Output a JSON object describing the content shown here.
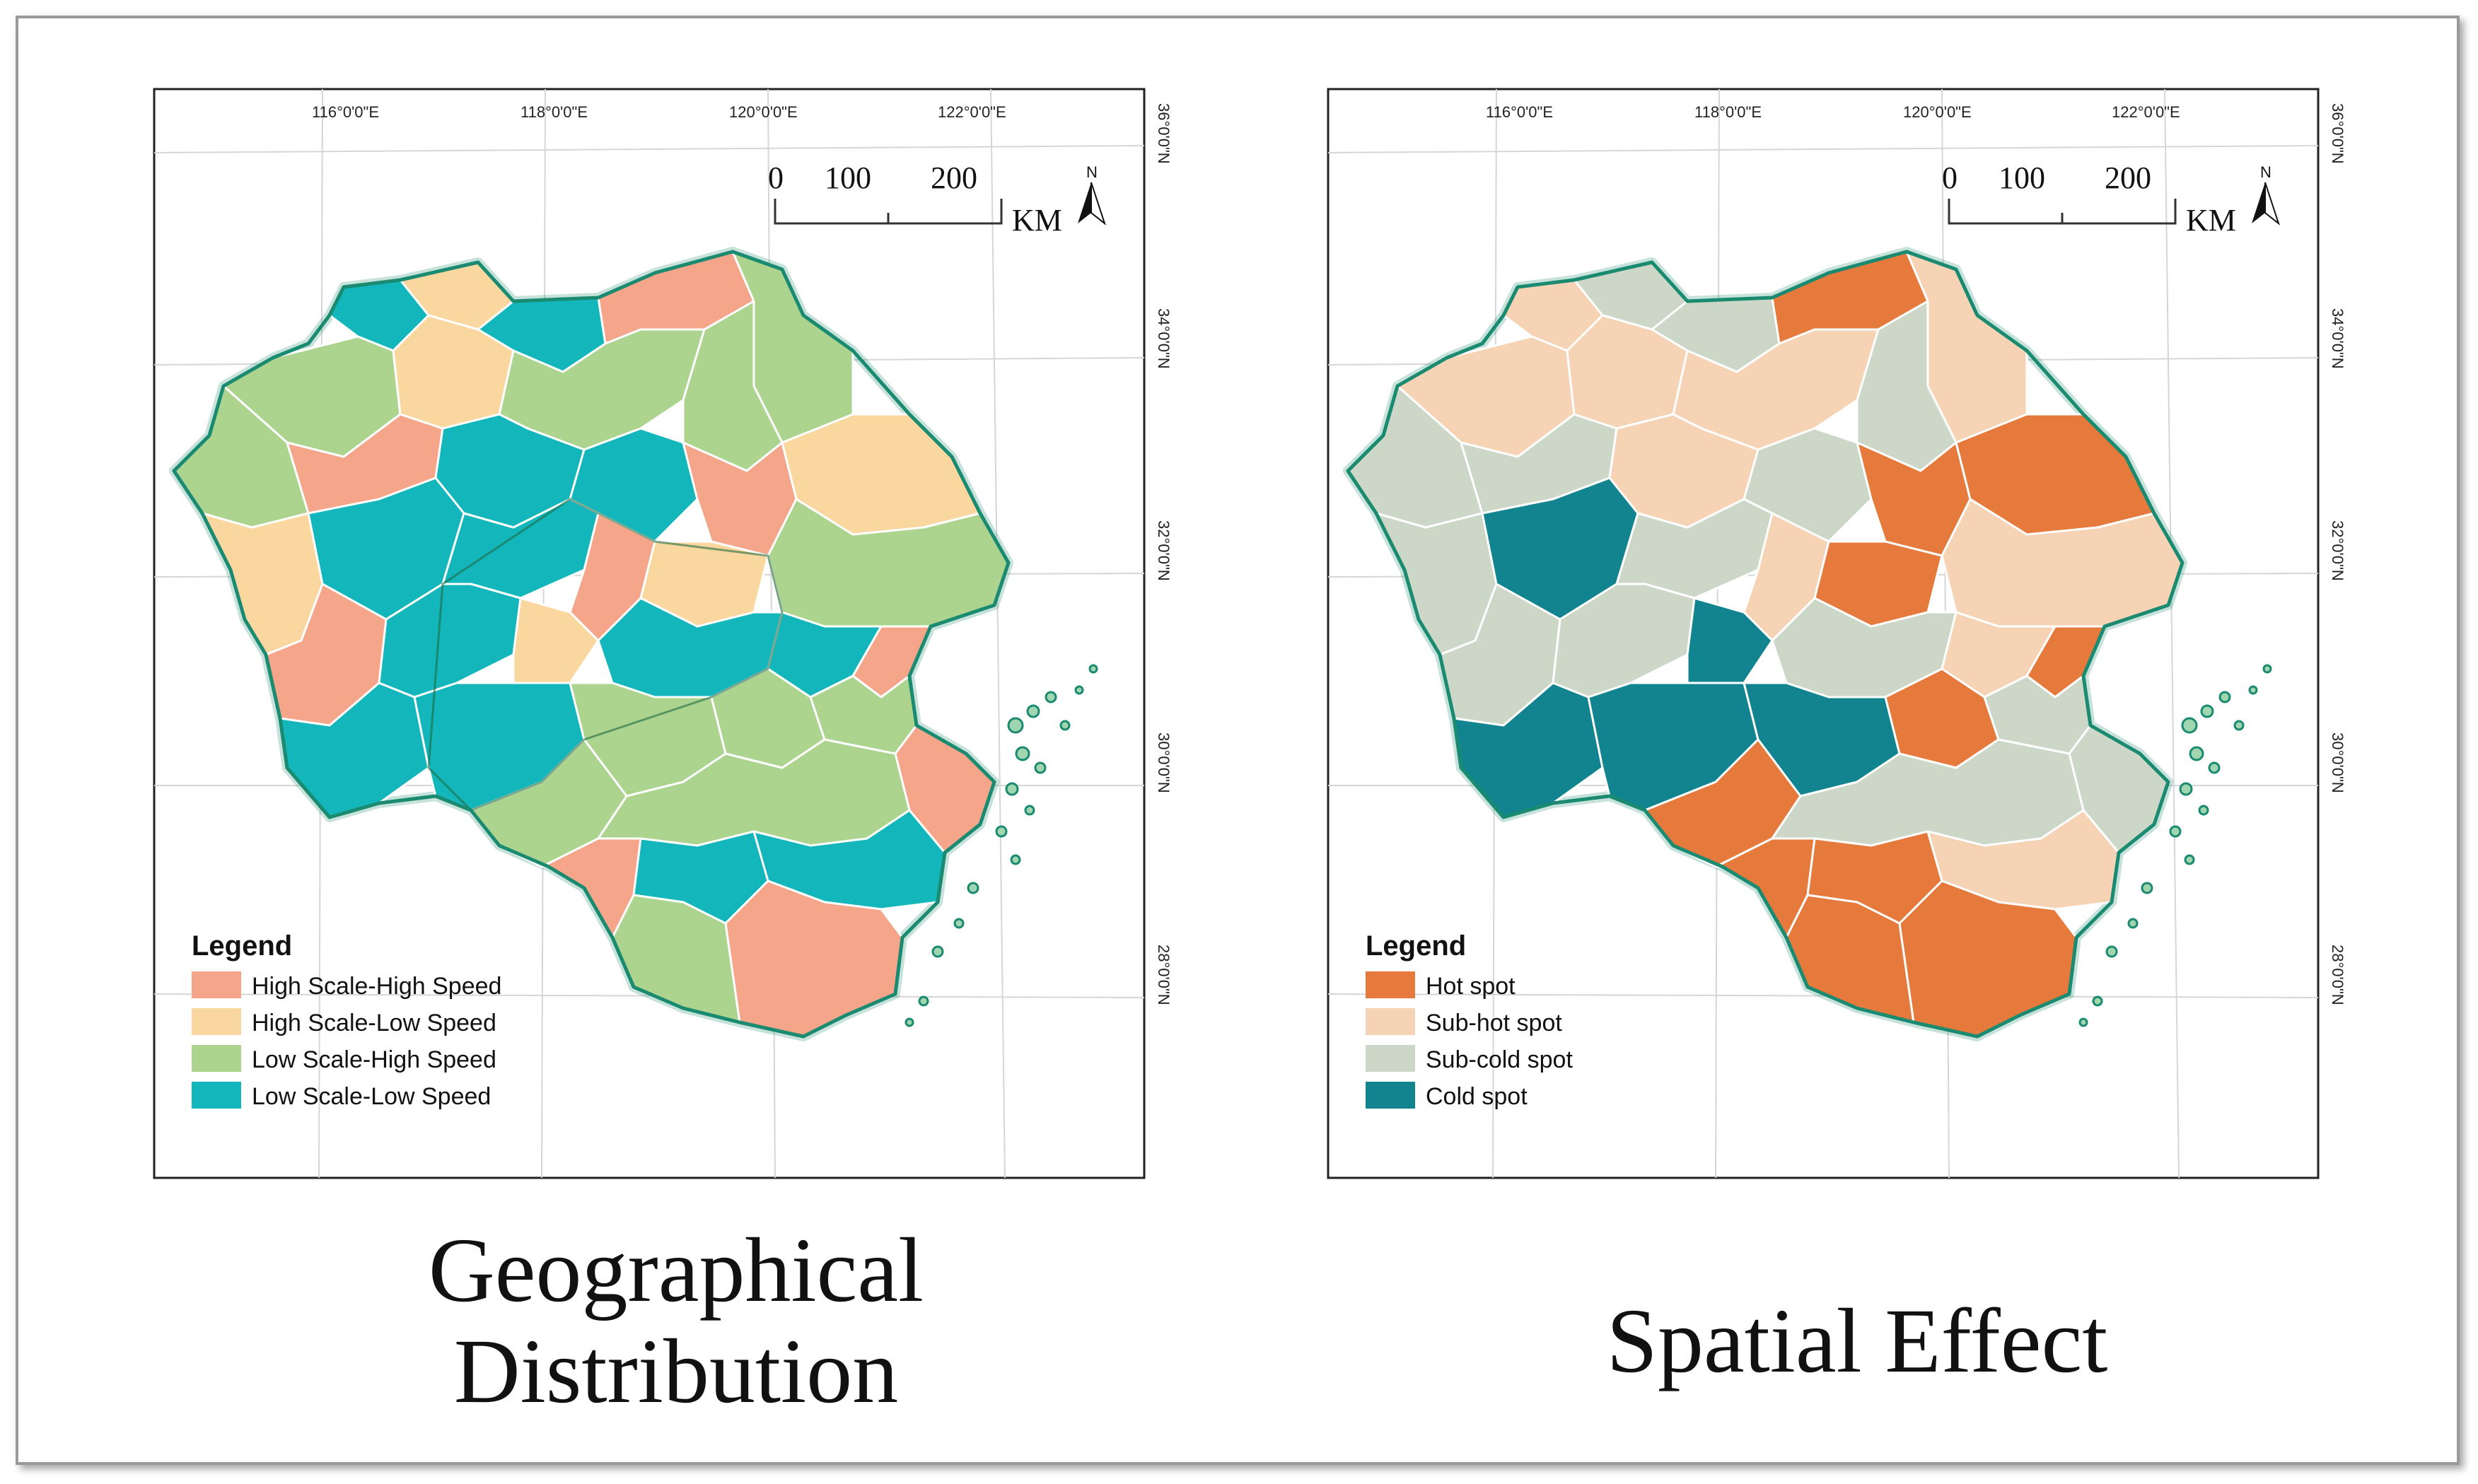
{
  "maps": [
    {
      "key": "geo",
      "caption": [
        "Geographical",
        "Distribution"
      ],
      "lon_labels": [
        "116°0'0\"E",
        "118°0'0\"E",
        "120°0'0\"E",
        "122°0'0\"E"
      ],
      "lat_labels": [
        "36°0'0\"N",
        "34°0'0\"N",
        "32°0'0\"N",
        "30°0'0\"N",
        "28°0'0\"N"
      ],
      "scale": {
        "ticks": [
          "0",
          "100",
          "200"
        ],
        "unit": "KM"
      },
      "north": "N",
      "legend": {
        "title": "Legend",
        "items": [
          {
            "label": "High Scale-High Speed",
            "color": "#f4a58a"
          },
          {
            "label": "High Scale-Low Speed",
            "color": "#fbd7a0"
          },
          {
            "label": "Low Scale-High Speed",
            "color": "#acd48f"
          },
          {
            "label": "Low Scale-Low Speed",
            "color": "#12b6bb"
          }
        ]
      }
    },
    {
      "key": "spatial",
      "caption": [
        "Spatial Effect"
      ],
      "lon_labels": [
        "116°0'0\"E",
        "118°0'0\"E",
        "120°0'0\"E",
        "122°0'0\"E"
      ],
      "lat_labels": [
        "36°0'0\"N",
        "34°0'0\"N",
        "32°0'0\"N",
        "30°0'0\"N",
        "28°0'0\"N"
      ],
      "scale": {
        "ticks": [
          "0",
          "100",
          "200"
        ],
        "unit": "KM"
      },
      "north": "N",
      "legend": {
        "title": "Legend",
        "items": [
          {
            "label": "Hot spot",
            "color": "#e67a3c"
          },
          {
            "label": "Sub-hot spot",
            "color": "#f6d3b4"
          },
          {
            "label": "Sub-cold spot",
            "color": "#cdd7c8"
          },
          {
            "label": "Cold spot",
            "color": "#118490"
          }
        ]
      }
    }
  ],
  "outline_color": "#1a8a70"
}
